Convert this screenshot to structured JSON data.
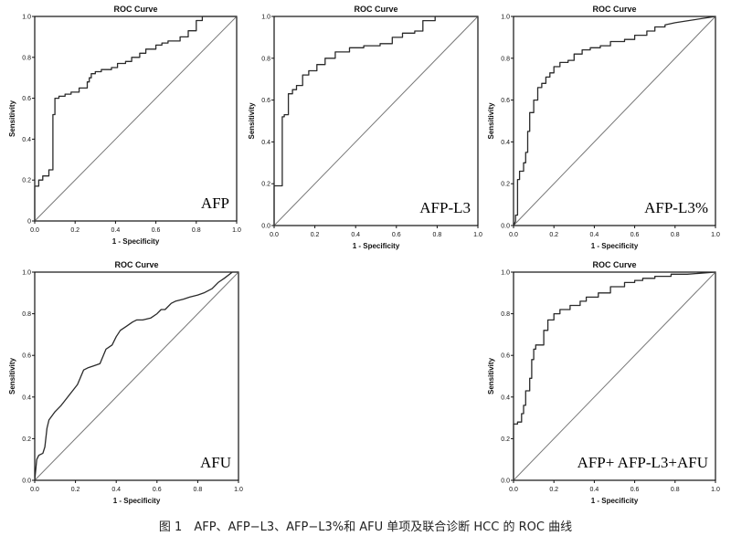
{
  "caption": "图 1　AFP、AFP−L3、AFP−L3%和 AFU 单项及联合诊断 HCC 的 ROC 曲线",
  "chart_data": [
    {
      "type": "line",
      "title": "ROC Curve",
      "panel_label": "AFP",
      "xlabel": "1 - Specificity",
      "ylabel": "Sensitivity",
      "xlim": [
        0,
        1
      ],
      "ylim": [
        0,
        1
      ],
      "xticks": [
        "0.0",
        "0.2",
        "0.4",
        "0.6",
        "0.8",
        "1.0"
      ],
      "yticks": [
        "0",
        "0.2",
        "0.4",
        "0.6",
        "0.8",
        "1.0"
      ],
      "grid": false,
      "diagonal": true,
      "series": [
        {
          "x": [
            0,
            0,
            0.02,
            0.02,
            0.04,
            0.04,
            0.07,
            0.07,
            0.09,
            0.09,
            0.1,
            0.1,
            0.12,
            0.12,
            0.15,
            0.15,
            0.18,
            0.18,
            0.22,
            0.22,
            0.26,
            0.26,
            0.27,
            0.27,
            0.28,
            0.28,
            0.3,
            0.3,
            0.33,
            0.33,
            0.38,
            0.38,
            0.41,
            0.41,
            0.45,
            0.45,
            0.48,
            0.48,
            0.52,
            0.52,
            0.55,
            0.55,
            0.6,
            0.6,
            0.63,
            0.63,
            0.66,
            0.66,
            0.72,
            0.72,
            0.76,
            0.76,
            0.8,
            0.8,
            0.83,
            0.83,
            1
          ],
          "y": [
            0,
            0.17,
            0.17,
            0.2,
            0.2,
            0.22,
            0.22,
            0.25,
            0.25,
            0.52,
            0.52,
            0.6,
            0.6,
            0.61,
            0.61,
            0.62,
            0.62,
            0.63,
            0.63,
            0.65,
            0.65,
            0.68,
            0.68,
            0.7,
            0.7,
            0.72,
            0.72,
            0.73,
            0.73,
            0.74,
            0.74,
            0.75,
            0.75,
            0.77,
            0.77,
            0.78,
            0.78,
            0.8,
            0.8,
            0.82,
            0.82,
            0.84,
            0.84,
            0.86,
            0.86,
            0.87,
            0.87,
            0.88,
            0.88,
            0.9,
            0.9,
            0.93,
            0.93,
            0.98,
            0.98,
            1,
            1
          ]
        }
      ]
    },
    {
      "type": "line",
      "title": "ROC Curve",
      "panel_label": "AFP-L3",
      "xlabel": "1 - Specificity",
      "ylabel": "Sensitivity",
      "xlim": [
        0,
        1
      ],
      "ylim": [
        0,
        1
      ],
      "xticks": [
        "0.0",
        "0.2",
        "0.4",
        "0.6",
        "0.8",
        "1.0"
      ],
      "yticks": [
        "0.0",
        "0.2",
        "0.4",
        "0.6",
        "0.8",
        "1.0"
      ],
      "grid": false,
      "diagonal": true,
      "series": [
        {
          "x": [
            0,
            0,
            0.04,
            0.04,
            0.05,
            0.05,
            0.07,
            0.07,
            0.09,
            0.09,
            0.11,
            0.11,
            0.14,
            0.14,
            0.17,
            0.17,
            0.21,
            0.21,
            0.25,
            0.25,
            0.3,
            0.3,
            0.37,
            0.37,
            0.44,
            0.44,
            0.52,
            0.52,
            0.58,
            0.58,
            0.63,
            0.63,
            0.69,
            0.69,
            0.73,
            0.73,
            0.79,
            0.79,
            1
          ],
          "y": [
            0,
            0.19,
            0.19,
            0.52,
            0.52,
            0.53,
            0.53,
            0.63,
            0.63,
            0.65,
            0.65,
            0.67,
            0.67,
            0.72,
            0.72,
            0.74,
            0.74,
            0.77,
            0.77,
            0.8,
            0.8,
            0.83,
            0.83,
            0.85,
            0.85,
            0.86,
            0.86,
            0.87,
            0.87,
            0.9,
            0.9,
            0.92,
            0.92,
            0.93,
            0.93,
            0.98,
            0.98,
            1,
            1
          ]
        }
      ]
    },
    {
      "type": "line",
      "title": "ROC Curve",
      "panel_label": "AFP-L3%",
      "xlabel": "1 - Specificity",
      "ylabel": "Sensitivity",
      "xlim": [
        0,
        1
      ],
      "ylim": [
        0,
        1
      ],
      "xticks": [
        "0.0",
        "0.2",
        "0.4",
        "0.6",
        "0.8",
        "1.0"
      ],
      "yticks": [
        "0.0",
        "0.2",
        "0.4",
        "0.6",
        "0.8",
        "1.0"
      ],
      "grid": false,
      "diagonal": true,
      "series": [
        {
          "x": [
            0,
            0.01,
            0.01,
            0.02,
            0.02,
            0.03,
            0.03,
            0.05,
            0.05,
            0.06,
            0.06,
            0.07,
            0.07,
            0.08,
            0.08,
            0.1,
            0.1,
            0.12,
            0.12,
            0.14,
            0.14,
            0.16,
            0.16,
            0.18,
            0.18,
            0.2,
            0.2,
            0.23,
            0.23,
            0.27,
            0.27,
            0.3,
            0.3,
            0.34,
            0.34,
            0.38,
            0.38,
            0.43,
            0.43,
            0.48,
            0.48,
            0.55,
            0.55,
            0.6,
            0.6,
            0.66,
            0.66,
            0.7,
            0.7,
            0.75,
            0.75,
            0.8,
            1
          ],
          "y": [
            0,
            0.02,
            0.05,
            0.05,
            0.22,
            0.22,
            0.26,
            0.26,
            0.3,
            0.3,
            0.35,
            0.35,
            0.45,
            0.45,
            0.54,
            0.54,
            0.6,
            0.6,
            0.66,
            0.66,
            0.68,
            0.68,
            0.71,
            0.71,
            0.73,
            0.73,
            0.76,
            0.76,
            0.78,
            0.78,
            0.79,
            0.79,
            0.82,
            0.82,
            0.84,
            0.84,
            0.85,
            0.85,
            0.86,
            0.86,
            0.88,
            0.88,
            0.89,
            0.89,
            0.91,
            0.91,
            0.93,
            0.93,
            0.95,
            0.95,
            0.96,
            0.97,
            1
          ]
        }
      ]
    },
    {
      "type": "line",
      "title": "ROC Curve",
      "panel_label": "AFU",
      "xlabel": "1 - Specificity",
      "ylabel": "Sensitivity",
      "xlim": [
        0,
        1
      ],
      "ylim": [
        0,
        1
      ],
      "xticks": [
        "0.0",
        "0.2",
        "0.4",
        "0.6",
        "0.8",
        "1.0"
      ],
      "yticks": [
        "0.0",
        "0.2",
        "0.4",
        "0.6",
        "0.8",
        "1.0"
      ],
      "grid": false,
      "diagonal": true,
      "series": [
        {
          "x": [
            0,
            0.01,
            0.02,
            0.04,
            0.05,
            0.06,
            0.07,
            0.1,
            0.13,
            0.17,
            0.21,
            0.24,
            0.26,
            0.29,
            0.32,
            0.35,
            0.38,
            0.4,
            0.42,
            0.45,
            0.48,
            0.5,
            0.53,
            0.57,
            0.6,
            0.62,
            0.64,
            0.67,
            0.69,
            0.73,
            0.76,
            0.8,
            0.83,
            0.87,
            0.9,
            0.93,
            0.97,
            1
          ],
          "y": [
            0,
            0.1,
            0.12,
            0.13,
            0.16,
            0.25,
            0.29,
            0.33,
            0.36,
            0.41,
            0.46,
            0.53,
            0.54,
            0.55,
            0.56,
            0.63,
            0.65,
            0.69,
            0.72,
            0.74,
            0.76,
            0.77,
            0.77,
            0.78,
            0.8,
            0.82,
            0.82,
            0.85,
            0.86,
            0.87,
            0.88,
            0.89,
            0.9,
            0.92,
            0.95,
            0.97,
            1,
            1
          ]
        }
      ]
    },
    {
      "type": "line",
      "title": "ROC Curve",
      "panel_label": "AFP+ AFP-L3+AFU",
      "xlabel": "1 - Specificity",
      "ylabel": "Sensitivity",
      "xlim": [
        0,
        1
      ],
      "ylim": [
        0,
        1
      ],
      "xticks": [
        "0.0",
        "0.2",
        "0.4",
        "0.6",
        "0.8",
        "1.0"
      ],
      "yticks": [
        "0.0",
        "0.2",
        "0.4",
        "0.6",
        "0.8",
        "1.0"
      ],
      "grid": false,
      "diagonal": true,
      "series": [
        {
          "x": [
            0,
            0,
            0.02,
            0.02,
            0.04,
            0.04,
            0.05,
            0.05,
            0.06,
            0.06,
            0.08,
            0.08,
            0.09,
            0.09,
            0.1,
            0.1,
            0.11,
            0.11,
            0.15,
            0.15,
            0.17,
            0.17,
            0.2,
            0.2,
            0.23,
            0.23,
            0.28,
            0.28,
            0.33,
            0.33,
            0.36,
            0.36,
            0.42,
            0.42,
            0.48,
            0.48,
            0.55,
            0.55,
            0.6,
            0.6,
            0.64,
            0.64,
            0.7,
            0.7,
            0.78,
            0.78,
            0.86,
            1
          ],
          "y": [
            0,
            0.27,
            0.27,
            0.28,
            0.28,
            0.32,
            0.32,
            0.36,
            0.36,
            0.43,
            0.43,
            0.49,
            0.49,
            0.58,
            0.58,
            0.63,
            0.63,
            0.65,
            0.65,
            0.72,
            0.72,
            0.77,
            0.77,
            0.8,
            0.8,
            0.82,
            0.82,
            0.84,
            0.84,
            0.86,
            0.86,
            0.88,
            0.88,
            0.9,
            0.9,
            0.93,
            0.93,
            0.95,
            0.95,
            0.96,
            0.96,
            0.97,
            0.97,
            0.98,
            0.98,
            0.99,
            0.99,
            1
          ]
        }
      ]
    }
  ]
}
